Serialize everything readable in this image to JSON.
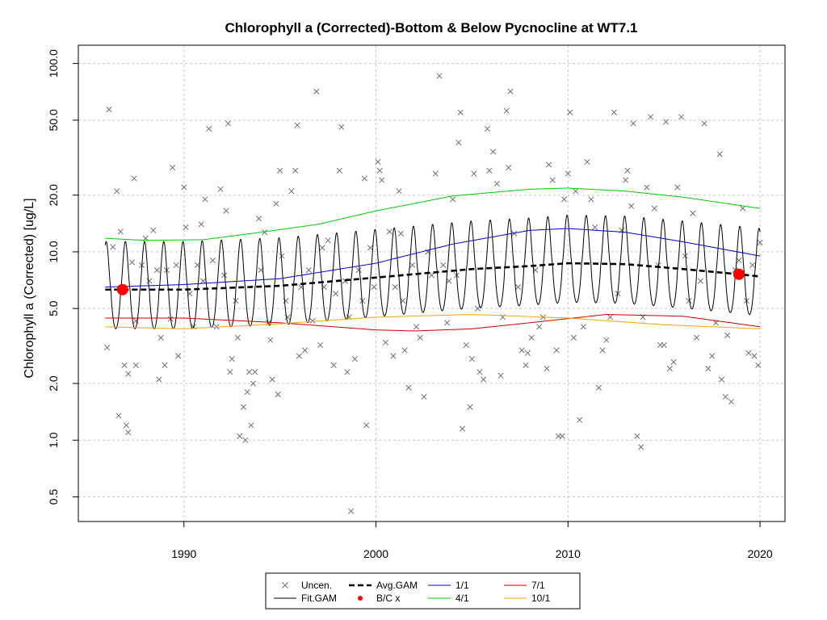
{
  "chart_data": {
    "type": "scatter",
    "title": "Chlorophyll a (Corrected)-Bottom & Below Pycnocline at WT7.1",
    "xlabel": "",
    "ylabel": "Chlorophyll a (Corrected) [ug/L]",
    "y_scale": "log",
    "xlim": [
      1984.5,
      2021.3
    ],
    "ylim": [
      0.37,
      125
    ],
    "x_ticks": [
      1990,
      2000,
      2010,
      2020
    ],
    "y_ticks": [
      0.5,
      1.0,
      2.0,
      5.0,
      10.0,
      20.0,
      50.0,
      100.0
    ],
    "y_tick_labels": [
      "0.5",
      "1.0",
      "2.0",
      "5.0",
      "10.0",
      "20.0",
      "50.0",
      "100.0"
    ],
    "grid": true,
    "colors": {
      "uncen": "#6e6e7a",
      "fit_gam": "#000000",
      "avg_gam": "#000000",
      "bc": "#ff0000",
      "q1": "#0000cc",
      "q4": "#00cc00",
      "q7": "#cc0000",
      "q10": "#ffa500",
      "grid": "#c8c8c8"
    },
    "legend": {
      "position": "bottom",
      "items": [
        {
          "key": "uncen",
          "label": "Uncen.",
          "symbol": "x"
        },
        {
          "key": "avg_gam",
          "label": "Avg.GAM",
          "symbol": "dash"
        },
        {
          "key": "q1",
          "label": "1/1",
          "symbol": "line"
        },
        {
          "key": "q7",
          "label": "7/1",
          "symbol": "line"
        },
        {
          "key": "fit_gam",
          "label": "Fit.GAM",
          "symbol": "line"
        },
        {
          "key": "bc",
          "label": "B/C x",
          "symbol": "dot"
        },
        {
          "key": "q4",
          "label": "4/1",
          "symbol": "line"
        },
        {
          "key": "q10",
          "label": "10/1",
          "symbol": "line"
        }
      ]
    },
    "bc_points": [
      {
        "x": 1986.8,
        "y": 6.3
      },
      {
        "x": 2018.9,
        "y": 7.6
      }
    ],
    "avg_gam": {
      "x": [
        1985.9,
        1990,
        1995,
        2000,
        2005,
        2008,
        2010,
        2013,
        2016,
        2018.9,
        2020
      ],
      "y": [
        6.3,
        6.3,
        6.6,
        7.3,
        8.1,
        8.4,
        8.7,
        8.6,
        8.1,
        7.6,
        7.4
      ]
    },
    "fit_gam": {
      "period_start": 1985.9,
      "period_end": 2020.0,
      "peak_factor": 1.8,
      "trough_factor": 0.62
    },
    "series": [
      {
        "name": "1/1",
        "x": [
          1985.9,
          1990,
          1995,
          2000,
          2004,
          2008,
          2010,
          2013,
          2016,
          2020
        ],
        "y": [
          6.5,
          6.7,
          7.2,
          8.7,
          11.0,
          13.0,
          13.3,
          12.7,
          11.3,
          9.5
        ]
      },
      {
        "name": "4/1",
        "x": [
          1985.9,
          1988,
          1991,
          1994,
          1997,
          2000,
          2004,
          2008,
          2010,
          2013,
          2016,
          2020
        ],
        "y": [
          11.8,
          11.5,
          11.6,
          12.7,
          14.0,
          16.5,
          19.8,
          21.5,
          21.8,
          21.0,
          19.5,
          17.0
        ]
      },
      {
        "name": "7/1",
        "x": [
          1985.9,
          1990,
          1995,
          2000,
          2002,
          2005,
          2008,
          2012,
          2016,
          2020
        ],
        "y": [
          4.45,
          4.45,
          4.2,
          3.85,
          3.8,
          3.9,
          4.2,
          4.65,
          4.55,
          4.0
        ]
      },
      {
        "name": "10/1",
        "x": [
          1985.9,
          1990,
          1995,
          2000,
          2005,
          2010,
          2015,
          2020
        ],
        "y": [
          4.0,
          3.9,
          4.15,
          4.5,
          4.65,
          4.45,
          4.1,
          3.9
        ]
      }
    ],
    "uncen_points": [
      [
        1986.0,
        3.1
      ],
      [
        1986.1,
        57
      ],
      [
        1986.3,
        10.6
      ],
      [
        1986.5,
        21
      ],
      [
        1986.7,
        12.8
      ],
      [
        1986.6,
        1.35
      ],
      [
        1986.9,
        2.5
      ],
      [
        1987.0,
        1.2
      ],
      [
        1987.1,
        2.25
      ],
      [
        1987.1,
        1.1
      ],
      [
        1987.3,
        8.8
      ],
      [
        1987.4,
        24.5
      ],
      [
        1987.5,
        4.3
      ],
      [
        1987.5,
        2.5
      ],
      [
        1987.8,
        8.5
      ],
      [
        1988.0,
        11.8
      ],
      [
        1988.2,
        7.0
      ],
      [
        1988.4,
        13
      ],
      [
        1988.6,
        8.0
      ],
      [
        1988.7,
        2.1
      ],
      [
        1988.8,
        3.5
      ],
      [
        1989.0,
        2.5
      ],
      [
        1989.1,
        8.0
      ],
      [
        1989.3,
        4.4
      ],
      [
        1989.4,
        28
      ],
      [
        1989.6,
        8.5
      ],
      [
        1989.7,
        2.8
      ],
      [
        1990.0,
        22
      ],
      [
        1990.1,
        13.5
      ],
      [
        1990.3,
        6.0
      ],
      [
        1990.5,
        4.0
      ],
      [
        1990.7,
        8.5
      ],
      [
        1990.9,
        14
      ],
      [
        1991.0,
        7.0
      ],
      [
        1991.1,
        19
      ],
      [
        1991.3,
        45
      ],
      [
        1991.5,
        9.0
      ],
      [
        1991.7,
        4.0
      ],
      [
        1991.9,
        21.5
      ],
      [
        1992.1,
        7.5
      ],
      [
        1992.2,
        16.5
      ],
      [
        1992.3,
        48
      ],
      [
        1992.4,
        2.3
      ],
      [
        1992.5,
        2.7
      ],
      [
        1992.7,
        5.5
      ],
      [
        1992.8,
        3.5
      ],
      [
        1992.9,
        1.05
      ],
      [
        1993.1,
        1.5
      ],
      [
        1993.2,
        1.0
      ],
      [
        1993.3,
        1.8
      ],
      [
        1993.4,
        2.3
      ],
      [
        1993.5,
        1.2
      ],
      [
        1993.6,
        2.0
      ],
      [
        1993.7,
        2.3
      ],
      [
        1993.9,
        15
      ],
      [
        1994.0,
        8.0
      ],
      [
        1994.2,
        12.7
      ],
      [
        1994.4,
        4.2
      ],
      [
        1994.5,
        3.4
      ],
      [
        1994.6,
        2.1
      ],
      [
        1994.8,
        18
      ],
      [
        1994.9,
        1.75
      ],
      [
        1995.0,
        27
      ],
      [
        1995.1,
        9.5
      ],
      [
        1995.3,
        5.5
      ],
      [
        1995.4,
        4.5
      ],
      [
        1995.6,
        21
      ],
      [
        1995.8,
        27
      ],
      [
        1995.9,
        47
      ],
      [
        1996.0,
        2.8
      ],
      [
        1996.1,
        6.5
      ],
      [
        1996.3,
        3.0
      ],
      [
        1996.5,
        8.0
      ],
      [
        1996.7,
        4.3
      ],
      [
        1996.9,
        71
      ],
      [
        1997.1,
        3.2
      ],
      [
        1997.2,
        10.5
      ],
      [
        1997.3,
        6.5
      ],
      [
        1997.5,
        11.5
      ],
      [
        1997.8,
        2.5
      ],
      [
        1997.9,
        6.0
      ],
      [
        1998.1,
        27
      ],
      [
        1998.2,
        46
      ],
      [
        1998.4,
        7.0
      ],
      [
        1998.5,
        2.3
      ],
      [
        1998.6,
        4.5
      ],
      [
        1998.7,
        0.42
      ],
      [
        1998.9,
        2.7
      ],
      [
        1999.1,
        8.0
      ],
      [
        1999.3,
        5.5
      ],
      [
        1999.4,
        24.5
      ],
      [
        1999.5,
        1.2
      ],
      [
        1999.7,
        10.5
      ],
      [
        1999.9,
        6.5
      ],
      [
        2000.1,
        30
      ],
      [
        2000.2,
        27
      ],
      [
        2000.3,
        24
      ],
      [
        2000.5,
        3.3
      ],
      [
        2000.7,
        12.8
      ],
      [
        2000.9,
        2.8
      ],
      [
        2001.0,
        6.5
      ],
      [
        2001.2,
        21
      ],
      [
        2001.3,
        12.5
      ],
      [
        2001.4,
        5.5
      ],
      [
        2001.5,
        3.0
      ],
      [
        2001.7,
        1.9
      ],
      [
        2001.9,
        8.5
      ],
      [
        2002.1,
        4.0
      ],
      [
        2002.3,
        3.5
      ],
      [
        2002.5,
        1.7
      ],
      [
        2002.7,
        10.0
      ],
      [
        2002.9,
        7.5
      ],
      [
        2003.1,
        26
      ],
      [
        2003.3,
        86
      ],
      [
        2003.5,
        8.5
      ],
      [
        2003.7,
        4.2
      ],
      [
        2003.8,
        7.0
      ],
      [
        2004.0,
        19
      ],
      [
        2004.2,
        7.5
      ],
      [
        2004.3,
        38
      ],
      [
        2004.4,
        55
      ],
      [
        2004.5,
        1.15
      ],
      [
        2004.7,
        3.2
      ],
      [
        2004.9,
        1.5
      ],
      [
        2005.0,
        2.7
      ],
      [
        2005.1,
        26
      ],
      [
        2005.3,
        5.0
      ],
      [
        2005.4,
        2.3
      ],
      [
        2005.6,
        2.1
      ],
      [
        2005.8,
        45
      ],
      [
        2005.9,
        27
      ],
      [
        2006.1,
        34
      ],
      [
        2006.3,
        23
      ],
      [
        2006.5,
        2.2
      ],
      [
        2006.6,
        4.5
      ],
      [
        2006.8,
        56
      ],
      [
        2006.9,
        28
      ],
      [
        2007.0,
        71
      ],
      [
        2007.2,
        12.5
      ],
      [
        2007.4,
        6.5
      ],
      [
        2007.6,
        3.0
      ],
      [
        2007.8,
        2.5
      ],
      [
        2007.9,
        2.9
      ],
      [
        2008.1,
        3.5
      ],
      [
        2008.3,
        8.0
      ],
      [
        2008.5,
        4.0
      ],
      [
        2008.7,
        4.5
      ],
      [
        2008.9,
        2.4
      ],
      [
        2009.0,
        29
      ],
      [
        2009.2,
        24
      ],
      [
        2009.4,
        3.0
      ],
      [
        2009.5,
        1.05
      ],
      [
        2009.7,
        1.05
      ],
      [
        2009.8,
        19
      ],
      [
        2010.0,
        26
      ],
      [
        2010.1,
        55
      ],
      [
        2010.3,
        3.5
      ],
      [
        2010.4,
        21
      ],
      [
        2010.6,
        1.28
      ],
      [
        2010.8,
        4.0
      ],
      [
        2011.0,
        30
      ],
      [
        2011.2,
        19
      ],
      [
        2011.4,
        13.5
      ],
      [
        2011.6,
        1.9
      ],
      [
        2011.8,
        3.0
      ],
      [
        2012.0,
        3.4
      ],
      [
        2012.2,
        4.5
      ],
      [
        2012.4,
        55
      ],
      [
        2012.6,
        6.0
      ],
      [
        2012.8,
        13
      ],
      [
        2013.0,
        24
      ],
      [
        2013.1,
        27
      ],
      [
        2013.3,
        17.5
      ],
      [
        2013.4,
        48
      ],
      [
        2013.6,
        1.05
      ],
      [
        2013.8,
        0.92
      ],
      [
        2013.9,
        4.5
      ],
      [
        2014.1,
        22
      ],
      [
        2014.3,
        52
      ],
      [
        2014.5,
        17
      ],
      [
        2014.7,
        8.5
      ],
      [
        2014.8,
        3.2
      ],
      [
        2015.0,
        3.2
      ],
      [
        2015.1,
        49
      ],
      [
        2015.3,
        2.4
      ],
      [
        2015.5,
        2.6
      ],
      [
        2015.7,
        22
      ],
      [
        2015.9,
        52
      ],
      [
        2016.1,
        9.5
      ],
      [
        2016.3,
        5.5
      ],
      [
        2016.5,
        16
      ],
      [
        2016.7,
        3.5
      ],
      [
        2016.9,
        7.0
      ],
      [
        2017.1,
        48
      ],
      [
        2017.3,
        2.4
      ],
      [
        2017.5,
        2.8
      ],
      [
        2017.7,
        4.2
      ],
      [
        2017.9,
        33
      ],
      [
        2018.0,
        2.1
      ],
      [
        2018.2,
        1.7
      ],
      [
        2018.3,
        3.6
      ],
      [
        2018.5,
        1.6
      ],
      [
        2018.7,
        8.0
      ],
      [
        2018.9,
        9.0
      ],
      [
        2019.1,
        17
      ],
      [
        2019.3,
        5.5
      ],
      [
        2019.4,
        2.9
      ],
      [
        2019.6,
        8.5
      ],
      [
        2019.7,
        2.8
      ],
      [
        2019.9,
        2.5
      ],
      [
        2020.0,
        11.2
      ]
    ]
  }
}
